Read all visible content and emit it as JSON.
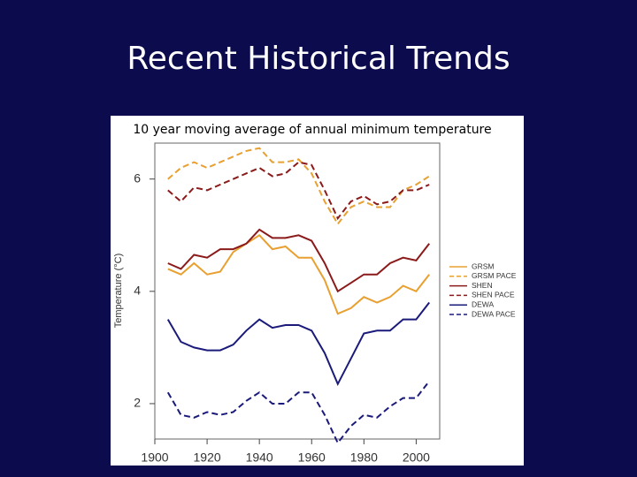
{
  "slide_title": "Recent Historical Trends",
  "chart_data": {
    "type": "line",
    "title": "10 year moving average of annual minimum temperature",
    "y_label": "Temperature (°C)",
    "x": [
      1905,
      1910,
      1915,
      1920,
      1925,
      1930,
      1935,
      1940,
      1945,
      1950,
      1955,
      1960,
      1965,
      1970,
      1975,
      1980,
      1985,
      1990,
      1995,
      2000,
      2005
    ],
    "series": [
      {
        "name": "GRSM",
        "color": "#e8a030",
        "dashed": false,
        "values": [
          4.4,
          4.3,
          4.5,
          4.3,
          4.35,
          4.7,
          4.85,
          5.0,
          4.75,
          4.8,
          4.6,
          4.6,
          4.2,
          3.6,
          3.7,
          3.9,
          3.8,
          3.9,
          4.1,
          4.0,
          4.3
        ]
      },
      {
        "name": "GRSM PACE",
        "color": "#e8a030",
        "dashed": true,
        "values": [
          6.0,
          6.2,
          6.3,
          6.2,
          6.3,
          6.4,
          6.5,
          6.55,
          6.3,
          6.3,
          6.35,
          6.1,
          5.6,
          5.2,
          5.5,
          5.6,
          5.5,
          5.5,
          5.8,
          5.9,
          6.05
        ]
      },
      {
        "name": "SHEN",
        "color": "#8b1a1a",
        "dashed": false,
        "values": [
          4.5,
          4.4,
          4.65,
          4.6,
          4.75,
          4.75,
          4.85,
          5.1,
          4.95,
          4.95,
          5.0,
          4.9,
          4.5,
          4.0,
          4.15,
          4.3,
          4.3,
          4.5,
          4.6,
          4.55,
          4.85
        ]
      },
      {
        "name": "SHEN PACE",
        "color": "#8b1a1a",
        "dashed": true,
        "values": [
          5.8,
          5.6,
          5.85,
          5.8,
          5.9,
          6.0,
          6.1,
          6.2,
          6.05,
          6.1,
          6.3,
          6.25,
          5.8,
          5.3,
          5.6,
          5.7,
          5.55,
          5.6,
          5.8,
          5.8,
          5.9
        ]
      },
      {
        "name": "DEWA",
        "color": "#1a1a7a",
        "dashed": false,
        "values": [
          3.5,
          3.1,
          3.0,
          2.95,
          2.95,
          3.05,
          3.3,
          3.5,
          3.35,
          3.4,
          3.4,
          3.3,
          2.9,
          2.35,
          2.8,
          3.25,
          3.3,
          3.3,
          3.5,
          3.5,
          3.8
        ]
      },
      {
        "name": "DEWA PACE",
        "color": "#1a1a7a",
        "dashed": true,
        "values": [
          2.2,
          1.8,
          1.75,
          1.85,
          1.8,
          1.85,
          2.05,
          2.2,
          2.0,
          2.0,
          2.2,
          2.2,
          1.8,
          1.3,
          1.6,
          1.8,
          1.75,
          1.95,
          2.1,
          2.1,
          2.4
        ]
      }
    ],
    "xlim": [
      1900,
      2009
    ],
    "xticks": [
      1900,
      1920,
      1940,
      1960,
      1980,
      2000
    ],
    "ylim": [
      1.37,
      6.64
    ],
    "yticks": [
      2,
      4,
      6
    ],
    "grid": false,
    "legend": "right"
  }
}
